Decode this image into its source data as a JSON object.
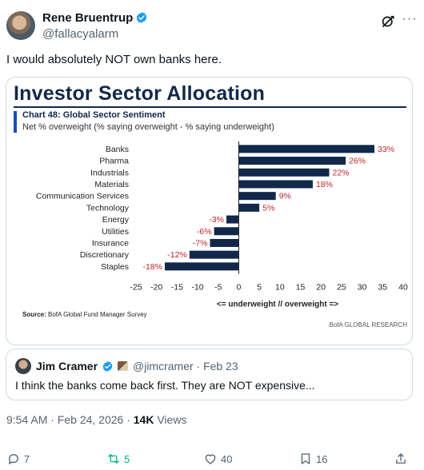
{
  "tweet": {
    "display_name": "Rene Bruentrup",
    "handle": "@fallacyalarm",
    "text": "I would absolutely NOT own banks here.",
    "timestamp": "9:54 AM · Feb 24, 2026 · ",
    "views_count": "14K",
    "views_label": " Views"
  },
  "slide": {
    "title": "Investor Sector Allocation",
    "chart_name": "Chart 48: Global Sector Sentiment",
    "chart_subtitle": "Net % overweight (% saying overweight - % saying underweight)",
    "source_label": "Source:",
    "source_text": " BofA Global Fund Manager Survey",
    "brand": "BofA GLOBAL RESEARCH"
  },
  "chart_data": {
    "type": "bar",
    "orientation": "horizontal",
    "categories": [
      "Banks",
      "Pharma",
      "Industrials",
      "Materials",
      "Communication Services",
      "Technology",
      "Energy",
      "Utilities",
      "Insurance",
      "Discretionary",
      "Staples"
    ],
    "values": [
      33,
      26,
      22,
      18,
      9,
      5,
      -3,
      -6,
      -7,
      -12,
      -18
    ],
    "value_labels": [
      "33%",
      "26%",
      "22%",
      "18%",
      "9%",
      "5%",
      "-3%",
      "-6%",
      "-7%",
      "-12%",
      "-18%"
    ],
    "xlim": [
      -25,
      40
    ],
    "xticks": [
      -25,
      -20,
      -15,
      -10,
      -5,
      0,
      5,
      10,
      15,
      20,
      25,
      30,
      35,
      40
    ],
    "xlabel": "<= underweight // overweight =>",
    "bar_color": "#12284a",
    "label_color": "#c0242b",
    "grid": false
  },
  "quote": {
    "display_name": "Jim Cramer",
    "handle_time": "@jimcramer · Feb 23",
    "text": "I think the banks come back first. They are NOT expensive..."
  },
  "actions": {
    "replies": "7",
    "reposts": "5",
    "likes": "40",
    "bookmarks": "16"
  },
  "colors": {
    "verified": "#1d9bf0",
    "repost_active": "#00ba7c",
    "muted_text": "#536471"
  },
  "icons": [
    "verified-badge-icon",
    "grok-icon",
    "more-icon",
    "reply-icon",
    "repost-icon",
    "like-icon",
    "bookmark-icon",
    "share-icon"
  ]
}
